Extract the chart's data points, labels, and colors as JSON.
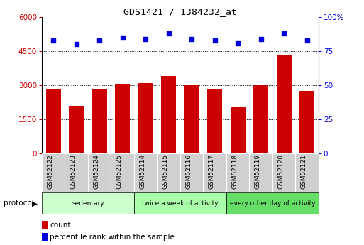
{
  "title": "GDS1421 / 1384232_at",
  "categories": [
    "GSM52122",
    "GSM52123",
    "GSM52124",
    "GSM52125",
    "GSM52114",
    "GSM52115",
    "GSM52116",
    "GSM52117",
    "GSM52118",
    "GSM52119",
    "GSM52120",
    "GSM52121"
  ],
  "counts": [
    2800,
    2100,
    2850,
    3050,
    3100,
    3400,
    3000,
    2800,
    2050,
    3000,
    4300,
    2750
  ],
  "percentile_ranks": [
    83,
    80,
    83,
    85,
    84,
    88,
    84,
    83,
    81,
    84,
    88,
    83
  ],
  "bar_color": "#cc0000",
  "dot_color": "#0000dd",
  "left_yticks": [
    0,
    1500,
    3000,
    4500,
    6000
  ],
  "right_yticks": [
    0,
    25,
    50,
    75,
    100
  ],
  "left_ylim": [
    0,
    6000
  ],
  "right_ylim": [
    0,
    100
  ],
  "groups": [
    {
      "label": "sedentary",
      "start": 0,
      "end": 4,
      "color": "#ccffcc"
    },
    {
      "label": "twice a week of activity",
      "start": 4,
      "end": 8,
      "color": "#aaffaa"
    },
    {
      "label": "every other day of activity",
      "start": 8,
      "end": 12,
      "color": "#66dd66"
    }
  ],
  "protocol_label": "protocol",
  "legend_count_label": "count",
  "legend_pct_label": "percentile rank within the sample",
  "figsize": [
    5.13,
    3.45
  ],
  "dpi": 100
}
